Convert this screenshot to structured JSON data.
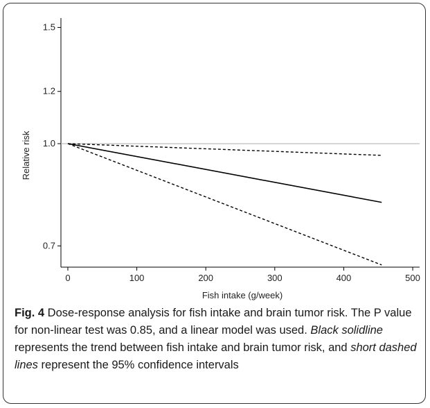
{
  "chart_data": {
    "type": "line",
    "xlabel": "Fish intake (g/week)",
    "ylabel": "Relative risk",
    "xlim": [
      -10,
      510
    ],
    "ylim": [
      0.65,
      1.55
    ],
    "y_scale": "log",
    "x_ticks": [
      0,
      100,
      200,
      300,
      400,
      500
    ],
    "y_ticks": [
      0.7,
      1.0,
      1.2,
      1.5
    ],
    "reference_line": 1.0,
    "grid": false,
    "series": [
      {
        "style": "solid",
        "color": "#000000",
        "x": [
          0,
          455
        ],
        "y": [
          1.0,
          0.815
        ]
      },
      {
        "style": "dashed",
        "color": "#000000",
        "x": [
          0,
          455
        ],
        "y": [
          1.0,
          0.96
        ]
      },
      {
        "style": "dashed",
        "color": "#000000",
        "x": [
          0,
          455
        ],
        "y": [
          1.0,
          0.655
        ]
      }
    ]
  },
  "caption": {
    "label": "Fig. 4",
    "part1": " Dose-response analysis for fish intake and brain tumor risk. The P value for non-linear test was 0.85, and a linear model was used. ",
    "italic1": "Black solidline",
    "part2": " represents the trend between fish intake and brain tumor risk, and ",
    "italic2": "short dashed lines",
    "part3": " represent the 95% confidence intervals"
  }
}
